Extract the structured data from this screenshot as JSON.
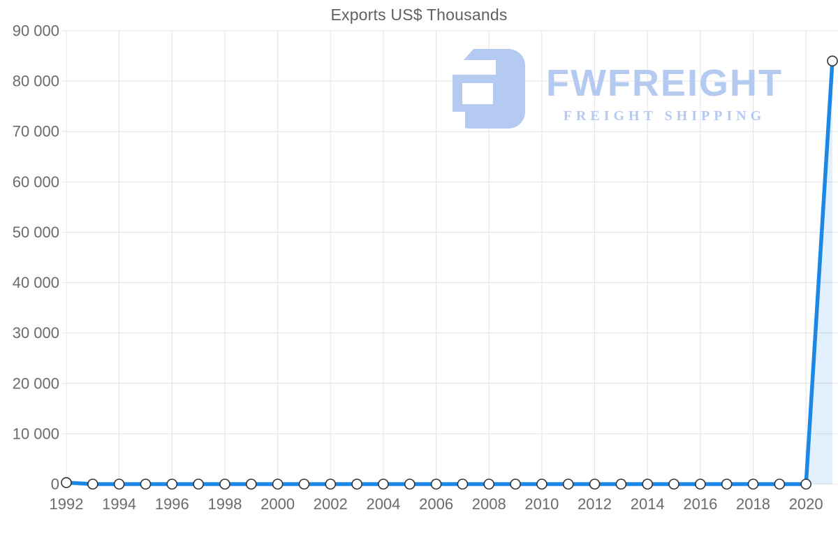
{
  "watermark": {
    "brand": "FWFREIGHT",
    "tagline": "FREIGHT SHIPPING",
    "logo_icon": "fwfreight-logo-mark",
    "color": "#b4caf1"
  },
  "chart_data": {
    "type": "line",
    "title": "Exports US$ Thousands",
    "x": [
      1992,
      1993,
      1994,
      1995,
      1996,
      1997,
      1998,
      1999,
      2000,
      2001,
      2002,
      2003,
      2004,
      2005,
      2006,
      2007,
      2008,
      2009,
      2010,
      2011,
      2012,
      2013,
      2014,
      2015,
      2016,
      2017,
      2018,
      2019,
      2020,
      2021
    ],
    "series": [
      {
        "name": "Exports US$ Thousands",
        "values": [
          300,
          0,
          0,
          0,
          0,
          0,
          0,
          0,
          0,
          0,
          0,
          0,
          0,
          0,
          0,
          0,
          0,
          0,
          0,
          0,
          0,
          0,
          0,
          0,
          0,
          0,
          0,
          0,
          0,
          84000
        ]
      }
    ],
    "x_tick_labels": [
      "1992",
      "1994",
      "1996",
      "1998",
      "2000",
      "2002",
      "2004",
      "2006",
      "2008",
      "2010",
      "2012",
      "2014",
      "2016",
      "2018",
      "2020"
    ],
    "y_tick_labels": [
      "0",
      "10 000",
      "20 000",
      "30 000",
      "40 000",
      "50 000",
      "60 000",
      "70 000",
      "80 000",
      "90 000"
    ],
    "ylim": [
      0,
      90000
    ],
    "y_tick_step": 10000,
    "grid": true,
    "legend_position": "none",
    "colors": {
      "line": "#1d87e6",
      "area_fill": "rgba(29,135,230,0.13)",
      "marker_fill": "#ffffff",
      "marker_stroke": "#333333",
      "gridline": "#e4e4e4",
      "tick_text": "#6b6b6b",
      "title_text": "#616161"
    }
  }
}
